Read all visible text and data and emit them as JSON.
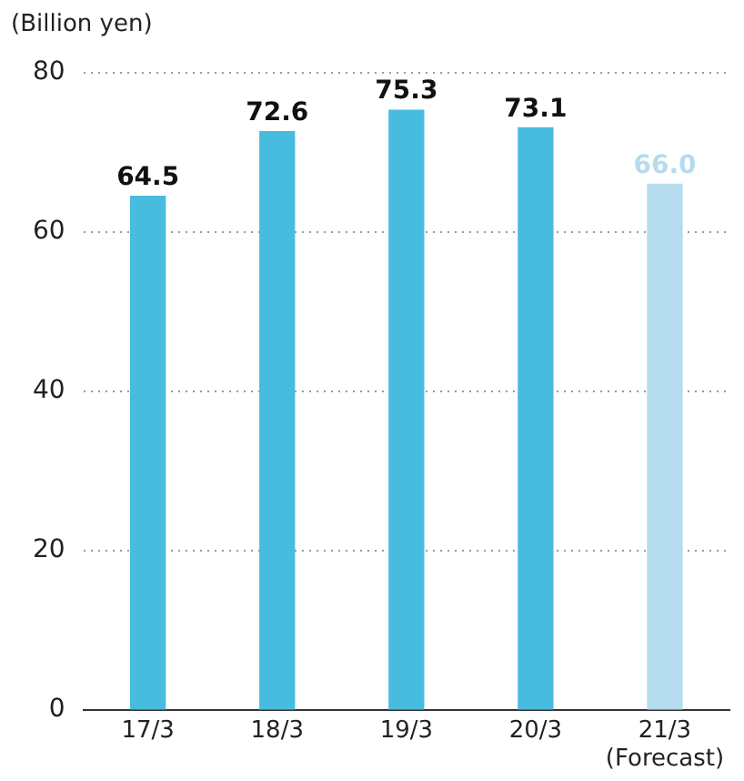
{
  "chart_data": {
    "type": "bar",
    "ylabel": "(Billion yen)",
    "categories": [
      "17/3",
      "18/3",
      "19/3",
      "20/3",
      "21/3\n(Forecast)"
    ],
    "values": [
      64.5,
      72.6,
      75.3,
      73.1,
      66.0
    ],
    "colors": [
      "#48bcdf",
      "#48bcdf",
      "#48bcdf",
      "#48bcdf",
      "#b4dcee"
    ],
    "value_labels": [
      "64.5",
      "72.6",
      "75.3",
      "73.1",
      "66.0"
    ],
    "ylim": [
      0,
      80
    ],
    "yticks": [
      0,
      20,
      40,
      60,
      80
    ],
    "grid": "y",
    "legend": false
  }
}
